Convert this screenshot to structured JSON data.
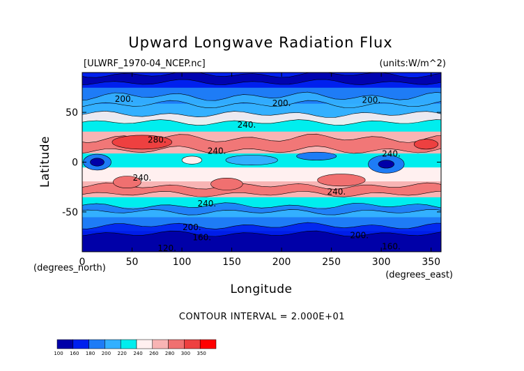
{
  "chart_data": {
    "type": "heatmap",
    "title": "Upward Longwave Radiation Flux",
    "file_label": "[ULWRF_1970-04_NCEP.nc]",
    "units_label": "(units:W/m^2)",
    "xlabel": "Longitude",
    "ylabel": "Latitude",
    "x_unit_label": "(degrees_east)",
    "y_unit_label": "(degrees_north)",
    "xlim": [
      0,
      360
    ],
    "ylim": [
      -90,
      90
    ],
    "x_ticks": [
      0,
      50,
      100,
      150,
      200,
      250,
      300,
      350
    ],
    "y_ticks": [
      50,
      0,
      -50
    ],
    "contour_interval_label": "CONTOUR INTERVAL = 2.000E+01",
    "colorbar": {
      "levels": [
        "100",
        "160",
        "180",
        "200",
        "220",
        "240",
        "260",
        "280",
        "300",
        "350"
      ],
      "colors": [
        "#0000a8",
        "#0020ee",
        "#1e7cf6",
        "#33b0ff",
        "#00eeee",
        "#fff0f0",
        "#f8b4b4",
        "#f07070",
        "#ee4040",
        "#ff0000"
      ]
    },
    "latitude_bands": [
      {
        "lat": [
          90,
          74
        ],
        "class": "160-180"
      },
      {
        "lat": [
          74,
          58
        ],
        "class": "180-200"
      },
      {
        "lat": [
          58,
          42
        ],
        "class": "200-220"
      },
      {
        "lat": [
          42,
          30
        ],
        "class": "220-240"
      },
      {
        "lat": [
          30,
          8
        ],
        "class": "260-280"
      },
      {
        "lat": [
          8,
          -6
        ],
        "class": "220-240"
      },
      {
        "lat": [
          -6,
          -20
        ],
        "class": "240-260"
      },
      {
        "lat": [
          -20,
          -36
        ],
        "class": "260-280"
      },
      {
        "lat": [
          -36,
          -46
        ],
        "class": "220-240"
      },
      {
        "lat": [
          -46,
          -56
        ],
        "class": "200-220"
      },
      {
        "lat": [
          -56,
          -70
        ],
        "class": "180-200"
      },
      {
        "lat": [
          -70,
          -90
        ],
        "class": "100-160"
      }
    ],
    "contour_labels": [
      {
        "text": "200.",
        "lon": 42,
        "lat": 63
      },
      {
        "text": "200.",
        "lon": 200,
        "lat": 59
      },
      {
        "text": "200.",
        "lon": 290,
        "lat": 62
      },
      {
        "text": "240.",
        "lon": 165,
        "lat": 37
      },
      {
        "text": "280.",
        "lon": 75,
        "lat": 22
      },
      {
        "text": "240.",
        "lon": 135,
        "lat": 11
      },
      {
        "text": "240.",
        "lon": 310,
        "lat": 8
      },
      {
        "text": "240.",
        "lon": 60,
        "lat": -16
      },
      {
        "text": "240.",
        "lon": 255,
        "lat": -30
      },
      {
        "text": "240.",
        "lon": 125,
        "lat": -42
      },
      {
        "text": "200.",
        "lon": 110,
        "lat": -66
      },
      {
        "text": "160.",
        "lon": 120,
        "lat": -76
      },
      {
        "text": "200.",
        "lon": 278,
        "lat": -74
      },
      {
        "text": "160.",
        "lon": 310,
        "lat": -85
      },
      {
        "text": "120.",
        "lon": 85,
        "lat": -87
      }
    ]
  }
}
